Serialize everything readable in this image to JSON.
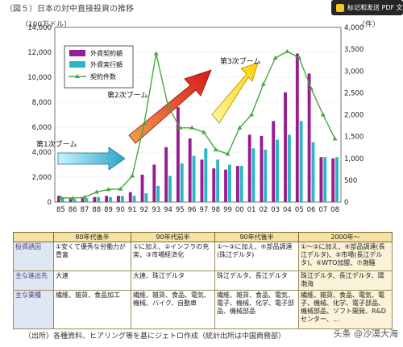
{
  "title": "（図５）日本の対中直接投資の推移",
  "overlay_button": {
    "label": "标记和发送 PDF 文档"
  },
  "chart_data": {
    "type": "bar",
    "title": "",
    "left_axis_label": "（100万ドル）",
    "right_axis_label": "（件）",
    "categories": [
      "85",
      "86",
      "87",
      "88",
      "89",
      "90",
      "91",
      "92",
      "93",
      "94",
      "95",
      "96",
      "97",
      "98",
      "99",
      "00",
      "01",
      "02",
      "03",
      "04",
      "05",
      "06",
      "07",
      "08"
    ],
    "series": [
      {
        "name": "外資契約額",
        "kind": "bar",
        "axis": "left",
        "color": "#9a1a8f",
        "values": [
          500,
          300,
          400,
          400,
          500,
          500,
          800,
          2200,
          3000,
          4400,
          7600,
          5100,
          3400,
          2700,
          2600,
          2900,
          5400,
          5300,
          6500,
          8800,
          11900,
          10300,
          3600,
          3500
        ]
      },
      {
        "name": "外資実行額",
        "kind": "bar",
        "axis": "left",
        "color": "#2bb6c4",
        "values": [
          300,
          200,
          300,
          400,
          400,
          500,
          500,
          700,
          1300,
          2100,
          3100,
          3700,
          4300,
          3400,
          3000,
          2900,
          4300,
          4200,
          5000,
          5400,
          6500,
          4800,
          3600,
          3600
        ]
      },
      {
        "name": "契約件数",
        "kind": "line",
        "axis": "right",
        "color": "#45a83e",
        "values": [
          100,
          90,
          110,
          230,
          290,
          300,
          600,
          1800,
          3400,
          2200,
          1700,
          1700,
          1600,
          1200,
          1100,
          1700,
          2000,
          2700,
          3300,
          3450,
          3300,
          2600,
          2000,
          1450
        ]
      }
    ],
    "ylim_left": [
      0,
      14000
    ],
    "yticks_left": [
      "0",
      "2,000",
      "4,000",
      "6,000",
      "8,000",
      "10,000",
      "12,000",
      "14,000"
    ],
    "ylim_right": [
      0,
      4000
    ],
    "yticks_right": [
      "0",
      "500",
      "1,000",
      "1,500",
      "2,000",
      "2,500",
      "3,000",
      "3,500",
      "4,000"
    ],
    "legend_position": "top-left",
    "annotations": [
      "第1次ブーム",
      "第2次ブーム",
      "第3次ブーム"
    ]
  },
  "table": {
    "headers": [
      "",
      "80年代後半",
      "90年代前半",
      "90年代後半",
      "2000年〜"
    ],
    "rows": [
      {
        "label": "投資誘因",
        "cells": [
          "①安くて優秀な労働力が豊富",
          "①に加え、②インフラの充実、③市場経済化",
          "①〜③に加え、④部品調達(珠江デルタ)",
          "①〜③に加え、④部品調達(長江デルタ)、⑤市場(長江デルタ)、⑥WTO加盟、⑦渤騒"
        ]
      },
      {
        "label": "主な進出先",
        "cells": [
          "大連",
          "大連、珠江デルタ",
          "珠江デルタ、長江デルタ",
          "珠江デルタ、長江デルタ、環渤海"
        ]
      },
      {
        "label": "主な業種",
        "cells": [
          "繊維、雑貨、食品加工",
          "繊維、雑貨、食品、電気、機械、バイク、自動車",
          "繊維、雑貨、食品、電気、電子、機械、化学、電子部品、機械部品",
          "繊維、雑貨、食品、電気、電子、機械、化学、電子部品、機械部品、ソフト開発、R&Dセンター、..."
        ]
      }
    ]
  },
  "footer_note": "（出所）各種資料、ヒアリング等を基にジェトロ作成（統計出所は中国商務部）",
  "watermark": "头条 @沙漠大海"
}
